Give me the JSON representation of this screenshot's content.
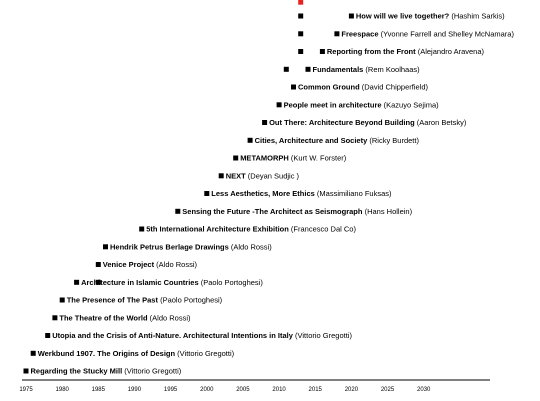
{
  "chart_data": {
    "type": "scatter",
    "xlim": [
      1973,
      2038
    ],
    "x_ticks": [
      1975,
      1980,
      1985,
      1990,
      1995,
      2000,
      2005,
      2010,
      2015,
      2020,
      2025,
      2030
    ],
    "grid": false,
    "legend": "none",
    "colors": {
      "marker": "#000000",
      "highlight": "#e8231f",
      "axis": "#000000"
    },
    "exhibitions": [
      {
        "year": 1975,
        "title": "Regarding the Stucky Mill",
        "curator": "(Vittorio Gregotti)"
      },
      {
        "year": 1976,
        "title": "Werkbund 1907. The Origins of Design",
        "curator": "(Vittorio Gregotti)"
      },
      {
        "year": 1978,
        "title": "Utopia and the Crisis of Anti-Nature. Architectural Intentions in Italy",
        "curator": "(Vittorio Gregotti)"
      },
      {
        "year": 1979,
        "title": "The Theatre of the World",
        "curator": "(Aldo Rossi)"
      },
      {
        "year": 1980,
        "title": "The Presence of The Past",
        "curator": "(Paolo Portoghesi)"
      },
      {
        "year": 1982,
        "title": "Architecture in Islamic Countries",
        "curator": "(Paolo Portoghesi)"
      },
      {
        "year": 1985,
        "title": "Venice Project",
        "curator": "(Aldo Rossi)"
      },
      {
        "year": 1986,
        "title": "Hendrik Petrus Berlage Drawings",
        "curator": "(Aldo Rossi)"
      },
      {
        "year": 1991,
        "title": "5th International Architecture Exhibition",
        "curator": "(Francesco Dal Co)"
      },
      {
        "year": 1996,
        "title": "Sensing the Future -The Architect as Seismograph",
        "curator": "(Hans Hollein)"
      },
      {
        "year": 2000,
        "title": "Less Aesthetics, More Ethics",
        "curator": "(Massimiliano Fuksas)"
      },
      {
        "year": 2002,
        "title": "NEXT",
        "curator": "(Deyan Sudjic )"
      },
      {
        "year": 2004,
        "title": "METAMORPH",
        "curator": "(Kurt W. Forster)"
      },
      {
        "year": 2006,
        "title": "Cities, Architecture and Society",
        "curator": "(Ricky Burdett)"
      },
      {
        "year": 2008,
        "title": "Out There: Architecture Beyond Building",
        "curator": "(Aaron Betsky)"
      },
      {
        "year": 2010,
        "title": "People meet in architecture",
        "curator": "(Kazuyo Sejima)"
      },
      {
        "year": 2012,
        "title": "Common Ground",
        "curator": "(David Chipperfield)"
      },
      {
        "year": 2014,
        "title": "Fundamentals",
        "curator": "(Rem Koolhaas)"
      },
      {
        "year": 2016,
        "title": "Reporting from the Front",
        "curator": "(Alejandro Aravena)"
      },
      {
        "year": 2018,
        "title": "Freespace",
        "curator": "(Yvonne Farrell and Shelley McNamara)"
      },
      {
        "year": 2020,
        "title": "How will we live together?",
        "curator": "(Hashim Sarkis)"
      }
    ]
  }
}
